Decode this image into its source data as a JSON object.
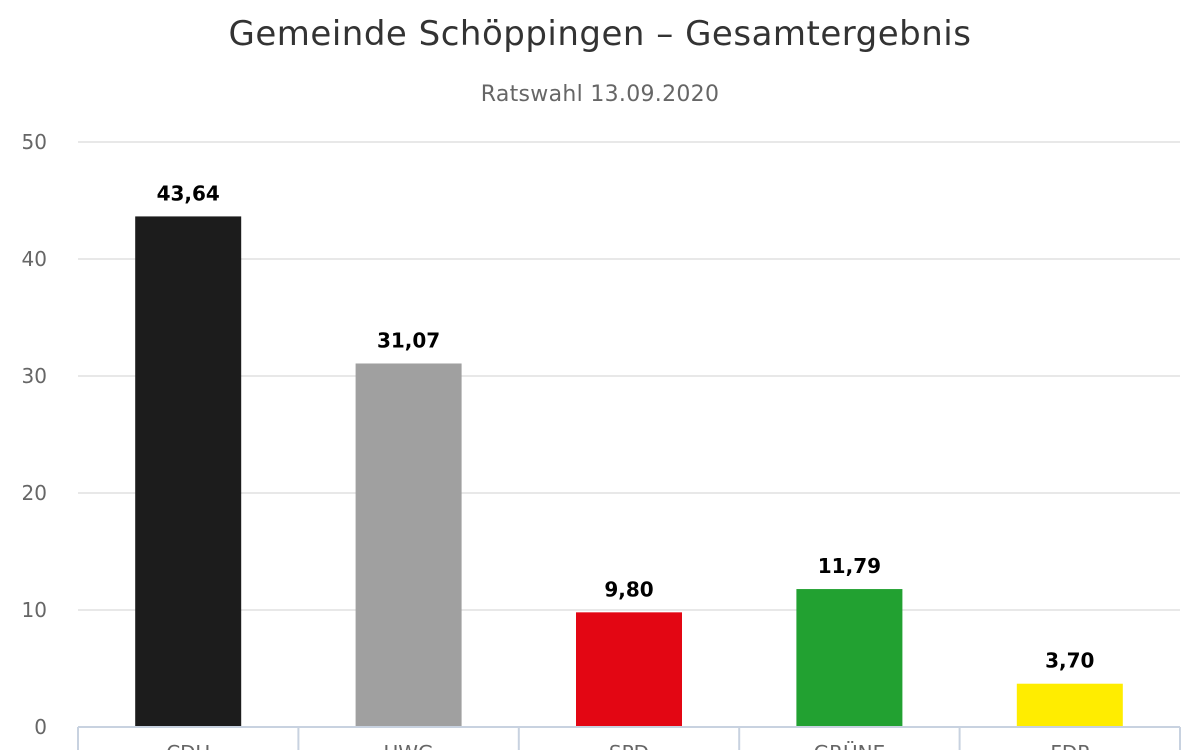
{
  "chart_data": {
    "type": "bar",
    "title": "Gemeinde Schöppingen – Gesamtergebnis",
    "subtitle": "Ratswahl 13.09.2020",
    "categories": [
      "CDU",
      "UWG",
      "SPD",
      "GRÜNE",
      "FDP"
    ],
    "values": [
      43.64,
      31.07,
      9.8,
      11.79,
      3.7
    ],
    "data_labels": [
      "43,64",
      "31,07",
      "9,80",
      "11,79",
      "3,70"
    ],
    "colors": [
      "#1c1c1c",
      "#a0a0a0",
      "#e30613",
      "#22a131",
      "#ffed00"
    ],
    "ylim": [
      0,
      50
    ],
    "yticks": [
      0,
      10,
      20,
      30,
      40,
      50
    ],
    "xlabel": "",
    "ylabel": "",
    "grid": true,
    "legend": "none"
  }
}
